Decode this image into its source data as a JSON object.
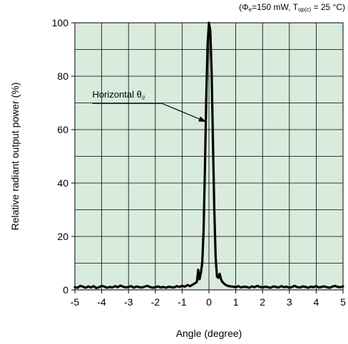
{
  "chart_data": {
    "type": "line",
    "title": "",
    "condition_note": "(Φe=150 mW, Top(c) = 25 °C)",
    "condition_parts": {
      "open": "(Φ",
      "phi_sub": "e",
      "power": "=150 mW, T",
      "temp_sub": "op(c)",
      "rest": " = 25 °C)"
    },
    "xlabel": "Angle (degree)",
    "ylabel": "Relative radiant output power  (%)",
    "xlim": [
      -5,
      5
    ],
    "ylim": [
      0,
      100
    ],
    "x_ticks": [
      "-5",
      "-4",
      "-3",
      "-2",
      "-1",
      "0",
      "1",
      "2",
      "3",
      "4",
      "5"
    ],
    "y_ticks": [
      "0",
      "20",
      "40",
      "60",
      "80",
      "100"
    ],
    "grid": true,
    "plot_background": "#d9ebdc",
    "line_color": "#000000",
    "annotation": {
      "label": "Horizontal θ//",
      "label_parts": {
        "main": "Horizontal θ",
        "sub": "//"
      },
      "text_anchor": [
        -4.35,
        72
      ],
      "underline_end": [
        -1.75,
        69.8
      ],
      "arrow_tip": [
        -0.12,
        63
      ]
    },
    "series": [
      {
        "name": "",
        "x": [
          -5.0,
          -4.9,
          -4.8,
          -4.7,
          -4.6,
          -4.5,
          -4.4,
          -4.3,
          -4.2,
          -4.1,
          -4.0,
          -3.9,
          -3.8,
          -3.7,
          -3.6,
          -3.5,
          -3.4,
          -3.3,
          -3.2,
          -3.1,
          -3.0,
          -2.9,
          -2.8,
          -2.7,
          -2.6,
          -2.5,
          -2.4,
          -2.3,
          -2.2,
          -2.1,
          -2.0,
          -1.9,
          -1.8,
          -1.7,
          -1.6,
          -1.5,
          -1.4,
          -1.3,
          -1.2,
          -1.1,
          -1.0,
          -0.9,
          -0.8,
          -0.7,
          -0.6,
          -0.5,
          -0.45,
          -0.4,
          -0.35,
          -0.3,
          -0.25,
          -0.2,
          -0.15,
          -0.1,
          -0.05,
          0.0,
          0.05,
          0.1,
          0.15,
          0.2,
          0.25,
          0.3,
          0.35,
          0.4,
          0.45,
          0.5,
          0.6,
          0.7,
          0.8,
          0.9,
          1.0,
          1.1,
          1.2,
          1.3,
          1.4,
          1.5,
          1.6,
          1.7,
          1.8,
          1.9,
          2.0,
          2.1,
          2.2,
          2.3,
          2.4,
          2.5,
          2.6,
          2.7,
          2.8,
          2.9,
          3.0,
          3.1,
          3.2,
          3.3,
          3.4,
          3.5,
          3.6,
          3.7,
          3.8,
          3.9,
          4.0,
          4.1,
          4.2,
          4.3,
          4.4,
          4.5,
          4.6,
          4.7,
          4.8,
          4.9,
          5.0
        ],
        "y": [
          1.0,
          0.8,
          1.5,
          1.2,
          0.8,
          1.3,
          0.9,
          1.4,
          0.7,
          1.0,
          1.5,
          1.2,
          0.8,
          1.1,
          0.9,
          1.4,
          1.0,
          1.6,
          1.2,
          0.9,
          1.1,
          1.4,
          0.8,
          1.3,
          1.0,
          0.9,
          1.2,
          1.5,
          1.1,
          0.8,
          1.0,
          1.3,
          0.9,
          1.1,
          0.8,
          1.2,
          1.0,
          0.9,
          1.4,
          1.1,
          1.5,
          1.2,
          1.8,
          1.4,
          2.0,
          2.6,
          3.0,
          7.5,
          4.0,
          6.5,
          10.0,
          22.0,
          45.0,
          72.0,
          92.0,
          100.0,
          97.0,
          82.0,
          55.0,
          30.0,
          12.0,
          5.0,
          4.5,
          6.0,
          4.0,
          3.0,
          2.0,
          1.5,
          1.3,
          1.2,
          1.0,
          1.4,
          0.9,
          1.2,
          1.1,
          0.8,
          1.3,
          1.0,
          1.5,
          1.1,
          0.9,
          1.2,
          1.0,
          0.8,
          1.3,
          1.1,
          0.9,
          1.4,
          1.0,
          1.2,
          0.8,
          1.1,
          1.5,
          1.0,
          0.9,
          1.3,
          1.1,
          0.8,
          1.2,
          1.0,
          1.4,
          0.9,
          1.1,
          1.3,
          1.0,
          0.8,
          1.2,
          1.5,
          1.1,
          1.0,
          1.3
        ]
      }
    ]
  }
}
